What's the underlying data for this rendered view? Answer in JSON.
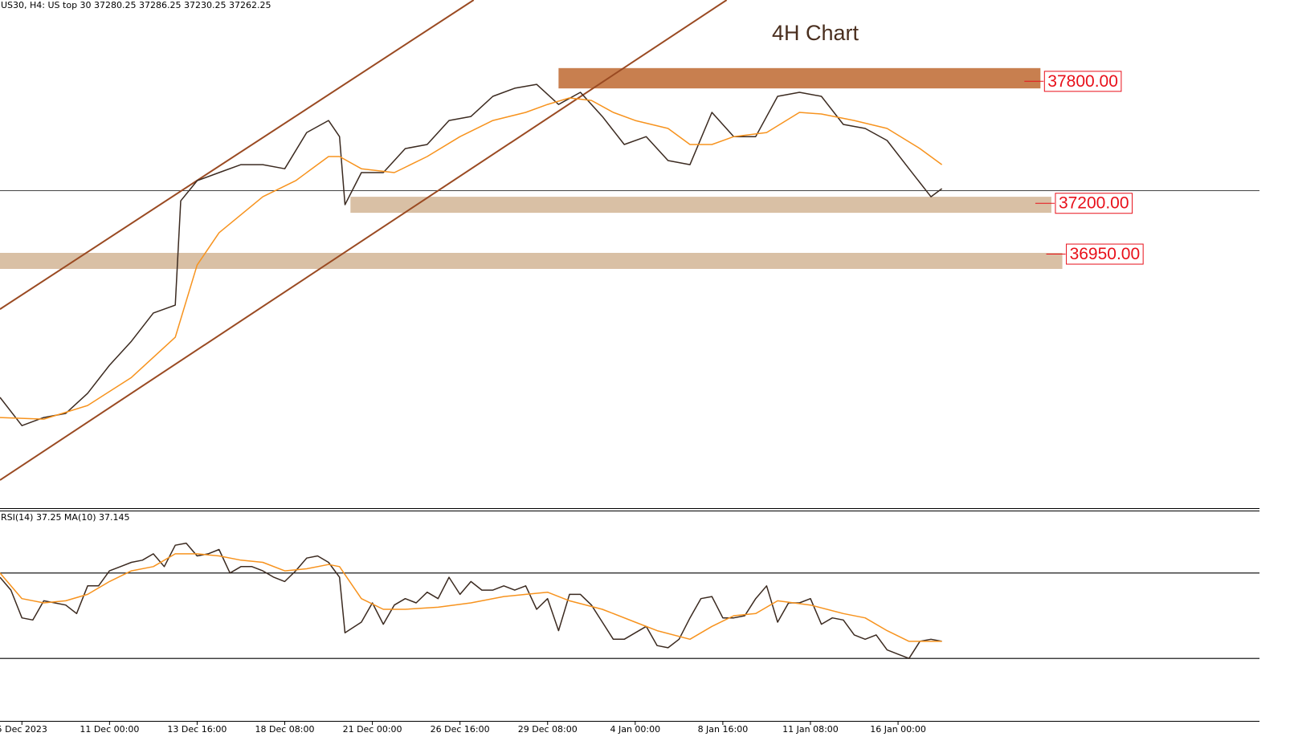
{
  "chart_data": [
    {
      "type": "line",
      "header": "US30, H4:  US top 30  37280.25 37286.25 37230.25 37262.25",
      "title": "4H Chart",
      "xlim": [
        0,
        230
      ],
      "ylim": [
        35700,
        38200
      ],
      "price_line": 37262.25,
      "series": [
        {
          "color": "#3b2a20",
          "x": [
            0,
            4,
            8,
            12,
            16,
            20,
            24,
            28,
            32,
            33,
            36,
            40,
            44,
            48,
            52,
            56,
            60,
            62,
            63,
            66,
            70,
            74,
            78,
            82,
            86,
            90,
            94,
            98,
            102,
            106,
            110,
            114,
            118,
            122,
            126,
            130,
            134,
            138,
            142,
            146,
            150,
            154,
            158,
            162,
            166,
            170,
            172
          ],
          "values": [
            36245,
            36106,
            36146,
            36166,
            36265,
            36403,
            36521,
            36660,
            36699,
            37212,
            37311,
            37351,
            37390,
            37390,
            37370,
            37548,
            37607,
            37528,
            37193,
            37351,
            37351,
            37469,
            37489,
            37607,
            37627,
            37726,
            37766,
            37785,
            37686,
            37746,
            37627,
            37489,
            37528,
            37410,
            37390,
            37647,
            37528,
            37528,
            37726,
            37746,
            37726,
            37588,
            37568,
            37509,
            37370,
            37232,
            37272
          ]
        },
        {
          "color": "#f7931e",
          "x": [
            0,
            8,
            16,
            24,
            32,
            36,
            40,
            48,
            54,
            60,
            62,
            66,
            72,
            78,
            84,
            90,
            96,
            100,
            104,
            108,
            112,
            116,
            122,
            126,
            130,
            134,
            140,
            146,
            150,
            156,
            162,
            168,
            172
          ],
          "values": [
            36146,
            36138,
            36205,
            36343,
            36541,
            36896,
            37055,
            37232,
            37311,
            37430,
            37430,
            37370,
            37351,
            37430,
            37528,
            37607,
            37647,
            37686,
            37718,
            37706,
            37647,
            37607,
            37568,
            37489,
            37489,
            37528,
            37548,
            37647,
            37639,
            37607,
            37568,
            37469,
            37390
          ]
        }
      ],
      "trendlines": [
        {
          "color": "#9a4a22",
          "x": [
            0,
            86.5
          ],
          "values": [
            36679,
            38200
          ]
        },
        {
          "color": "#9a4a22",
          "x": [
            0,
            132.7
          ],
          "values": [
            35838,
            38200
          ]
        }
      ],
      "zones": [
        {
          "color": "#c87f4f",
          "range": [
            37765,
            37865
          ],
          "xrange": [
            102,
            190
          ],
          "label": {
            "value": 37800,
            "label": "37800.00"
          }
        },
        {
          "color": "#d9c0a5",
          "range": [
            37153,
            37232
          ],
          "xrange": [
            64,
            192
          ],
          "label": {
            "value": 37200,
            "label": "37200.00"
          }
        },
        {
          "color": "#d9c0a5",
          "range": [
            36877,
            36956
          ],
          "xrange": [
            0,
            194
          ],
          "label": {
            "value": 36950,
            "label": "36950.00"
          }
        }
      ]
    },
    {
      "type": "line",
      "header": "RSI(14) 37.25 MA(10) 37.145",
      "xlim": [
        0,
        230
      ],
      "ylim": [
        0,
        100
      ],
      "levels": [
        70,
        30
      ],
      "xticks": [
        {
          "value": 4,
          "label": "5 Dec 2023"
        },
        {
          "value": 20,
          "label": "11 Dec 00:00"
        },
        {
          "value": 36,
          "label": "13 Dec 16:00"
        },
        {
          "value": 52,
          "label": "18 Dec 08:00"
        },
        {
          "value": 68,
          "label": "21 Dec 00:00"
        },
        {
          "value": 84,
          "label": "26 Dec 16:00"
        },
        {
          "value": 100,
          "label": "29 Dec 08:00"
        },
        {
          "value": 116,
          "label": "4 Jan 00:00"
        },
        {
          "value": 132,
          "label": "8 Jan 16:00"
        },
        {
          "value": 148,
          "label": "11 Jan 08:00"
        },
        {
          "value": 164,
          "label": "16 Jan 00:00"
        }
      ],
      "series": [
        {
          "color": "#3b2a20",
          "x": [
            0,
            2,
            4,
            6,
            8,
            10,
            12,
            14,
            16,
            18,
            20,
            22,
            24,
            26,
            28,
            30,
            32,
            34,
            36,
            38,
            40,
            42,
            44,
            46,
            48,
            50,
            52,
            54,
            56,
            58,
            60,
            62,
            63,
            66,
            68,
            70,
            72,
            74,
            76,
            78,
            80,
            82,
            84,
            86,
            88,
            90,
            92,
            94,
            96,
            98,
            100,
            102,
            104,
            106,
            108,
            110,
            112,
            114,
            116,
            118,
            120,
            122,
            124,
            126,
            128,
            130,
            132,
            134,
            136,
            138,
            140,
            142,
            144,
            146,
            148,
            150,
            152,
            154,
            156,
            158,
            160,
            162,
            164,
            166,
            168,
            170,
            172
          ],
          "values": [
            68,
            62,
            49,
            48,
            57,
            56,
            55,
            51,
            64,
            64,
            71,
            73,
            75,
            76,
            79,
            73,
            83,
            84,
            78,
            79,
            81,
            70,
            73,
            73,
            71,
            68,
            66,
            71,
            77,
            78,
            75,
            68,
            42,
            47,
            56,
            46,
            55,
            58,
            56,
            61,
            58,
            68,
            60,
            66,
            62,
            62,
            64,
            62,
            64,
            53,
            58,
            43,
            60,
            60,
            55,
            47,
            39,
            39,
            42,
            45,
            36,
            35,
            39,
            49,
            58,
            59,
            49,
            49,
            50,
            58,
            64,
            47,
            56,
            56,
            58,
            46,
            49,
            48,
            41,
            39,
            41,
            34,
            32,
            30,
            38,
            39,
            38
          ]
        },
        {
          "color": "#f7931e",
          "x": [
            0,
            4,
            8,
            12,
            16,
            20,
            24,
            28,
            32,
            36,
            40,
            44,
            48,
            52,
            56,
            60,
            62,
            66,
            70,
            74,
            80,
            86,
            92,
            96,
            100,
            104,
            110,
            116,
            120,
            126,
            130,
            134,
            138,
            142,
            148,
            154,
            158,
            162,
            166,
            170,
            172
          ],
          "values": [
            70,
            58,
            56,
            57,
            60,
            66,
            71,
            73,
            79,
            79,
            78,
            76,
            75,
            71,
            72,
            74,
            73,
            58,
            53,
            53,
            54,
            56,
            59,
            60,
            61,
            57,
            53,
            47,
            43,
            39,
            45,
            50,
            51,
            57,
            55,
            51,
            49,
            43,
            38,
            38,
            38
          ]
        }
      ]
    }
  ]
}
